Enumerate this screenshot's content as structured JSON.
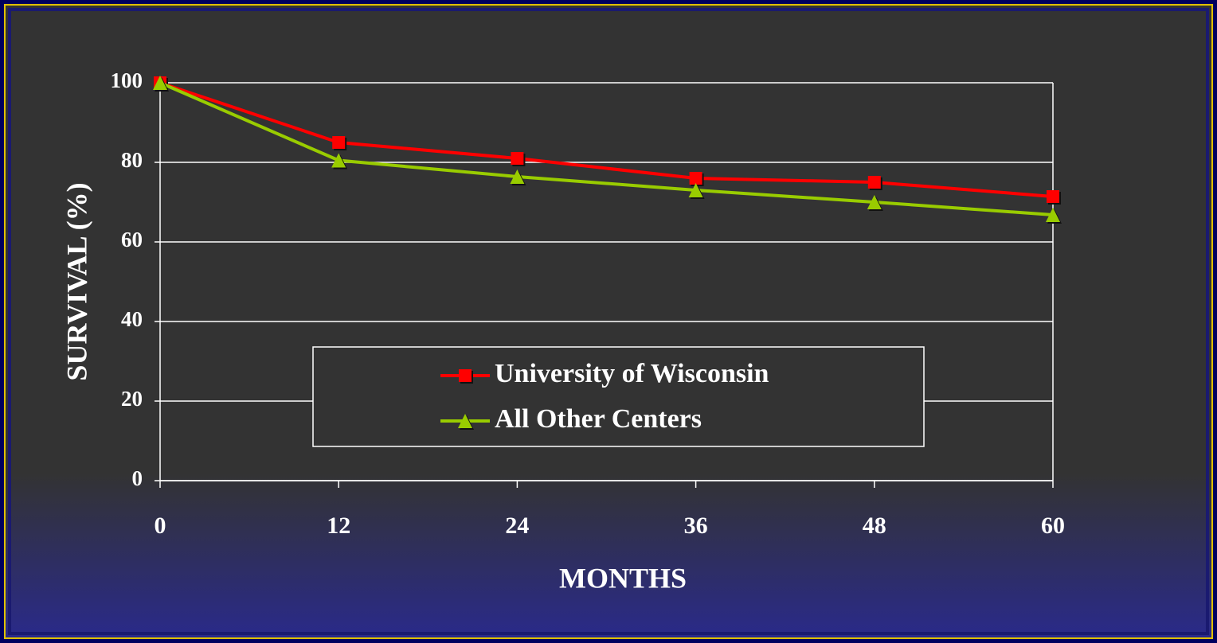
{
  "chart_data": {
    "type": "line",
    "x_label": "MONTHS",
    "y_label": "SURVIVAL (%)",
    "x": [
      0,
      12,
      24,
      36,
      48,
      60
    ],
    "series": [
      {
        "name": "University of Wisconsin",
        "color": "#ff0000",
        "marker": "square",
        "values": [
          100,
          85,
          81,
          76,
          75,
          71.4
        ]
      },
      {
        "name": "All Other Centers",
        "color": "#99cc00",
        "marker": "triangle",
        "values": [
          100,
          80.5,
          76.4,
          73,
          70,
          66.8
        ]
      }
    ],
    "xlim": [
      0,
      60
    ],
    "xticks": [
      0,
      12,
      24,
      36,
      48,
      60
    ],
    "ylim": [
      0,
      100
    ],
    "yticks": [
      0,
      20,
      40,
      60,
      80,
      100
    ],
    "grid": true,
    "legend": "lower center"
  }
}
